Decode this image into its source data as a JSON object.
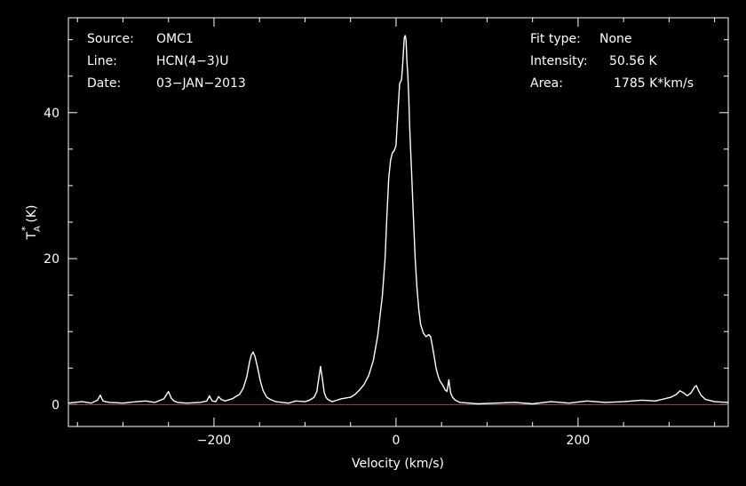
{
  "info": {
    "source_label": "Source:",
    "source_value": "OMC1",
    "line_label": "Line:",
    "line_value": "HCN(4−3)U",
    "date_label": "Date:",
    "date_value": "03−JAN−2013",
    "fit_label": "Fit type:",
    "fit_value": "None",
    "intensity_label": "Intensity:",
    "intensity_value": "50.56 K",
    "area_label": "Area:",
    "area_value": "1785 K*km/s"
  },
  "chart_data": {
    "type": "line",
    "title": "",
    "xlabel": "Velocity (km/s)",
    "ylabel_main": "T",
    "ylabel_sup": "*",
    "ylabel_sub": "A",
    "ylabel_unit": "(K)",
    "xlim": [
      -360,
      365
    ],
    "ylim": [
      -3,
      53
    ],
    "x_ticks": [
      {
        "value": -200,
        "label": "−200"
      },
      {
        "value": 0,
        "label": "0"
      },
      {
        "value": 200,
        "label": "200"
      }
    ],
    "y_ticks": [
      {
        "value": 0,
        "label": "0"
      },
      {
        "value": 20,
        "label": "20"
      },
      {
        "value": 40,
        "label": "40"
      }
    ],
    "baseline": {
      "y": 0,
      "color": "#ff2020"
    },
    "series": [
      {
        "color": "#ffffff",
        "x": [
          -360,
          -345,
          -335,
          -328,
          -325,
          -322,
          -315,
          -300,
          -285,
          -275,
          -265,
          -255,
          -250,
          -247,
          -244,
          -240,
          -230,
          -215,
          -208,
          -205,
          -202,
          -198,
          -195,
          -192,
          -188,
          -180,
          -172,
          -168,
          -164,
          -161,
          -159,
          -157,
          -155,
          -152,
          -149,
          -146,
          -142,
          -138,
          -132,
          -125,
          -118,
          -110,
          -100,
          -95,
          -90,
          -87,
          -85,
          -83,
          -81,
          -79,
          -77,
          -75,
          -70,
          -60,
          -50,
          -45,
          -40,
          -35,
          -30,
          -25,
          -20,
          -15,
          -12,
          -10,
          -8,
          -6,
          -4,
          -2,
          0,
          2,
          4,
          6,
          7,
          8,
          9,
          10,
          11,
          12,
          13,
          14,
          15,
          17,
          19,
          21,
          23,
          25,
          27,
          30,
          33,
          36,
          38,
          40,
          42,
          44,
          46,
          48,
          50,
          52,
          54,
          56,
          58,
          60,
          62,
          65,
          70,
          80,
          90,
          110,
          130,
          150,
          170,
          190,
          210,
          230,
          250,
          270,
          285,
          295,
          302,
          308,
          312,
          316,
          320,
          324,
          328,
          330,
          332,
          335,
          340,
          350,
          365
        ],
        "values": [
          0.2,
          0.4,
          0.2,
          0.6,
          1.3,
          0.5,
          0.3,
          0.2,
          0.4,
          0.5,
          0.3,
          0.8,
          1.8,
          0.9,
          0.5,
          0.3,
          0.2,
          0.3,
          0.5,
          1.2,
          0.5,
          0.4,
          1.1,
          0.7,
          0.5,
          0.8,
          1.4,
          2.2,
          3.8,
          5.8,
          6.8,
          7.2,
          6.6,
          5.0,
          3.2,
          1.9,
          1.0,
          0.7,
          0.4,
          0.3,
          0.2,
          0.5,
          0.4,
          0.6,
          1.0,
          1.8,
          3.5,
          5.2,
          3.6,
          1.7,
          1.0,
          0.7,
          0.4,
          0.8,
          1.0,
          1.4,
          2.0,
          2.8,
          4.0,
          6.0,
          9.5,
          15.0,
          20.0,
          26.0,
          31.0,
          33.5,
          34.5,
          34.8,
          35.5,
          40.0,
          44.0,
          44.5,
          46.0,
          48.0,
          50.2,
          50.56,
          50.0,
          47.0,
          45.0,
          42.0,
          38.0,
          32.0,
          26.0,
          20.0,
          16.0,
          13.0,
          11.0,
          9.8,
          9.3,
          9.6,
          9.3,
          8.0,
          6.5,
          5.0,
          4.0,
          3.3,
          2.9,
          2.5,
          2.0,
          1.8,
          3.4,
          1.6,
          1.0,
          0.6,
          0.3,
          0.2,
          0.1,
          0.2,
          0.3,
          0.1,
          0.4,
          0.2,
          0.5,
          0.3,
          0.4,
          0.6,
          0.5,
          0.8,
          1.0,
          1.4,
          1.9,
          1.6,
          1.2,
          1.6,
          2.4,
          2.6,
          2.0,
          1.3,
          0.7,
          0.4,
          0.3
        ]
      }
    ]
  }
}
